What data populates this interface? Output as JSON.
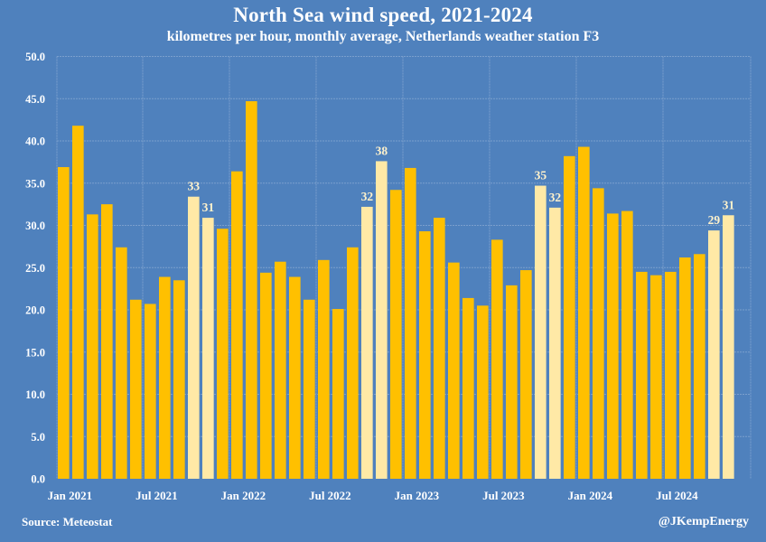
{
  "header": {
    "title": "North Sea wind speed, 2021-2024",
    "subtitle": "kilometres per hour, monthly average, Netherlands weather station F3"
  },
  "footer": {
    "source": "Source: Meteostat",
    "credit": "@JKempEnergy"
  },
  "colors": {
    "background": "#4F81BD",
    "bar": "#FFC000",
    "highlight_bar": "#FFE9A6",
    "data_label": "#FFF2CC",
    "text": "#FFFFFF",
    "grid": "#7A9FCD"
  },
  "chart_data": {
    "type": "bar",
    "title": "North Sea wind speed, 2021-2024",
    "subtitle": "kilometres per hour, monthly average, Netherlands weather station F3",
    "xlabel": "",
    "ylabel": "",
    "ylim": [
      0,
      50
    ],
    "yticks": [
      0,
      5,
      10,
      15,
      20,
      25,
      30,
      35,
      40,
      45,
      50
    ],
    "ytick_labels": [
      "0.0",
      "5.0",
      "10.0",
      "15.0",
      "20.0",
      "25.0",
      "30.0",
      "35.0",
      "40.0",
      "45.0",
      "50.0"
    ],
    "grid": true,
    "legend": "none",
    "x_slots": 48,
    "xtick_labels": [
      {
        "index": 0,
        "label": "Jan 2021"
      },
      {
        "index": 6,
        "label": "Jul 2021"
      },
      {
        "index": 12,
        "label": "Jan 2022"
      },
      {
        "index": 18,
        "label": "Jul 2022"
      },
      {
        "index": 24,
        "label": "Jan 2023"
      },
      {
        "index": 30,
        "label": "Jul 2023"
      },
      {
        "index": 36,
        "label": "Jan 2024"
      },
      {
        "index": 42,
        "label": "Jul 2024"
      }
    ],
    "categories": [
      "Jan 2021",
      "Feb 2021",
      "Mar 2021",
      "Apr 2021",
      "May 2021",
      "Jun 2021",
      "Jul 2021",
      "Aug 2021",
      "Sep 2021",
      "Oct 2021",
      "Nov 2021",
      "Dec 2021",
      "Jan 2022",
      "Feb 2022",
      "Mar 2022",
      "Apr 2022",
      "May 2022",
      "Jun 2022",
      "Jul 2022",
      "Aug 2022",
      "Sep 2022",
      "Oct 2022",
      "Nov 2022",
      "Dec 2022",
      "Jan 2023",
      "Feb 2023",
      "Mar 2023",
      "Apr 2023",
      "May 2023",
      "Jun 2023",
      "Jul 2023",
      "Aug 2023",
      "Sep 2023",
      "Oct 2023",
      "Nov 2023",
      "Dec 2023",
      "Jan 2024",
      "Feb 2024",
      "Mar 2024",
      "Apr 2024",
      "May 2024",
      "Jun 2024",
      "Jul 2024",
      "Aug 2024",
      "Sep 2024",
      "Oct 2024",
      "Nov 2024"
    ],
    "values": [
      36.9,
      41.8,
      31.3,
      32.5,
      27.4,
      21.2,
      20.7,
      23.9,
      23.5,
      33.4,
      30.9,
      29.6,
      36.4,
      44.7,
      24.4,
      25.7,
      23.9,
      21.2,
      25.9,
      20.1,
      27.4,
      32.2,
      37.6,
      34.2,
      36.8,
      29.3,
      30.9,
      25.6,
      21.4,
      20.5,
      28.3,
      22.9,
      24.7,
      34.7,
      32.1,
      38.2,
      39.3,
      34.4,
      31.4,
      31.7,
      24.5,
      24.1,
      24.5,
      26.2,
      26.6,
      29.4,
      31.2
    ],
    "highlighted": [
      9,
      10,
      21,
      22,
      33,
      34,
      45,
      46
    ],
    "data_labels": [
      {
        "index": 9,
        "label": "33"
      },
      {
        "index": 10,
        "label": "31"
      },
      {
        "index": 21,
        "label": "32"
      },
      {
        "index": 22,
        "label": "38"
      },
      {
        "index": 33,
        "label": "35"
      },
      {
        "index": 34,
        "label": "32"
      },
      {
        "index": 45,
        "label": "29"
      },
      {
        "index": 46,
        "label": "31"
      }
    ]
  }
}
